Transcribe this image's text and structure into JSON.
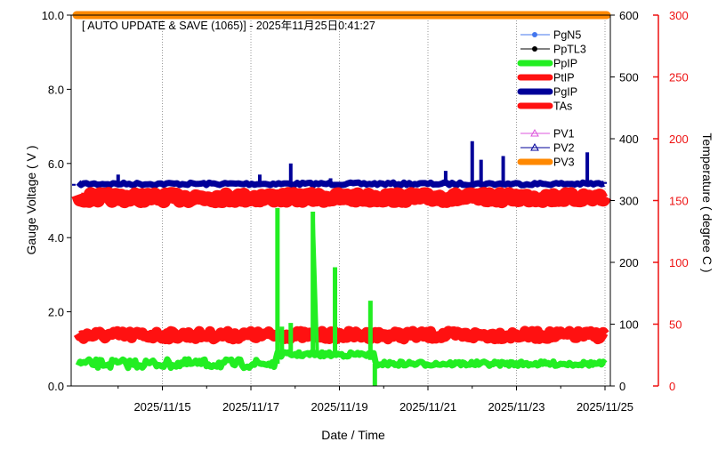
{
  "chart_data": {
    "type": "line",
    "title": "[ AUTO UPDATE & SAVE (1065)] - 2025年11月25日0:41:27",
    "xlabel": "Date / Time",
    "ylabel_left": "Gauge Voltage ( V )",
    "ylabel_right": "Temperature ( degree C )",
    "ylim_left": [
      0,
      10
    ],
    "ylim_right_inner": [
      0,
      600
    ],
    "ylim_right_outer": [
      0,
      300
    ],
    "yticks_left": [
      "0.0",
      "2.0",
      "4.0",
      "6.0",
      "8.0",
      "10.0"
    ],
    "yticks_right_inner": [
      "0",
      "100",
      "200",
      "300",
      "400",
      "500",
      "600"
    ],
    "yticks_right_outer": [
      "0",
      "50",
      "100",
      "150",
      "200",
      "250",
      "300"
    ],
    "xlim_days": [
      "2025-11-13",
      "2025-11-25"
    ],
    "xticks": [
      "2025/11/15",
      "2025/11/17",
      "2025/11/19",
      "2025/11/21",
      "2025/11/23",
      "2025/11/25"
    ],
    "grid": "vertical-dotted",
    "legend_position": "top-right",
    "colors": {
      "PgN5": "#4477ee",
      "PpTL3": "#000000",
      "PpIP": "#22ee22",
      "PtIP": "#ff1111",
      "PgIP": "#000099",
      "TAs": "#ff1111",
      "PV1": "#dd55dd",
      "PV2": "#000099",
      "PV3": "#ff8800",
      "right_axis_outer": "#ee1111"
    },
    "series": [
      {
        "name": "PgN5",
        "values": []
      },
      {
        "name": "PpTL3",
        "values": []
      },
      {
        "name": "PpIP",
        "x": [
          "2025-11-13",
          "2025-11-17.6",
          "2025-11-17.6",
          "2025-11-17.9",
          "2025-11-18.4",
          "2025-11-18.5",
          "2025-11-18.9",
          "2025-11-19.7",
          "2025-11-19.8",
          "2025-11-20",
          "2025-11-25"
        ],
        "values": [
          0.6,
          0.6,
          4.8,
          1.7,
          4.7,
          0.8,
          3.2,
          2.3,
          0.0,
          0.6,
          0.6
        ]
      },
      {
        "name": "PtIP",
        "values": [
          5.08,
          5.08
        ]
      },
      {
        "name": "PgIP",
        "x": [
          "2025-11-13",
          "2025-11-14",
          "2025-11-17.2",
          "2025-11-17.9",
          "2025-11-18.8",
          "2025-11-21.4",
          "2025-11-22",
          "2025-11-22.2",
          "2025-11-22.7",
          "2025-11-24.6",
          "2025-11-25"
        ],
        "values": [
          5.4,
          5.7,
          5.7,
          6.0,
          5.6,
          5.8,
          6.6,
          6.1,
          6.2,
          6.3,
          5.5
        ]
      },
      {
        "name": "TAs",
        "values": [
          1.37,
          1.37
        ]
      },
      {
        "name": "PV1",
        "values": []
      },
      {
        "name": "PV2",
        "values": []
      },
      {
        "name": "PV3",
        "values": [
          10.0,
          10.0
        ]
      }
    ]
  }
}
